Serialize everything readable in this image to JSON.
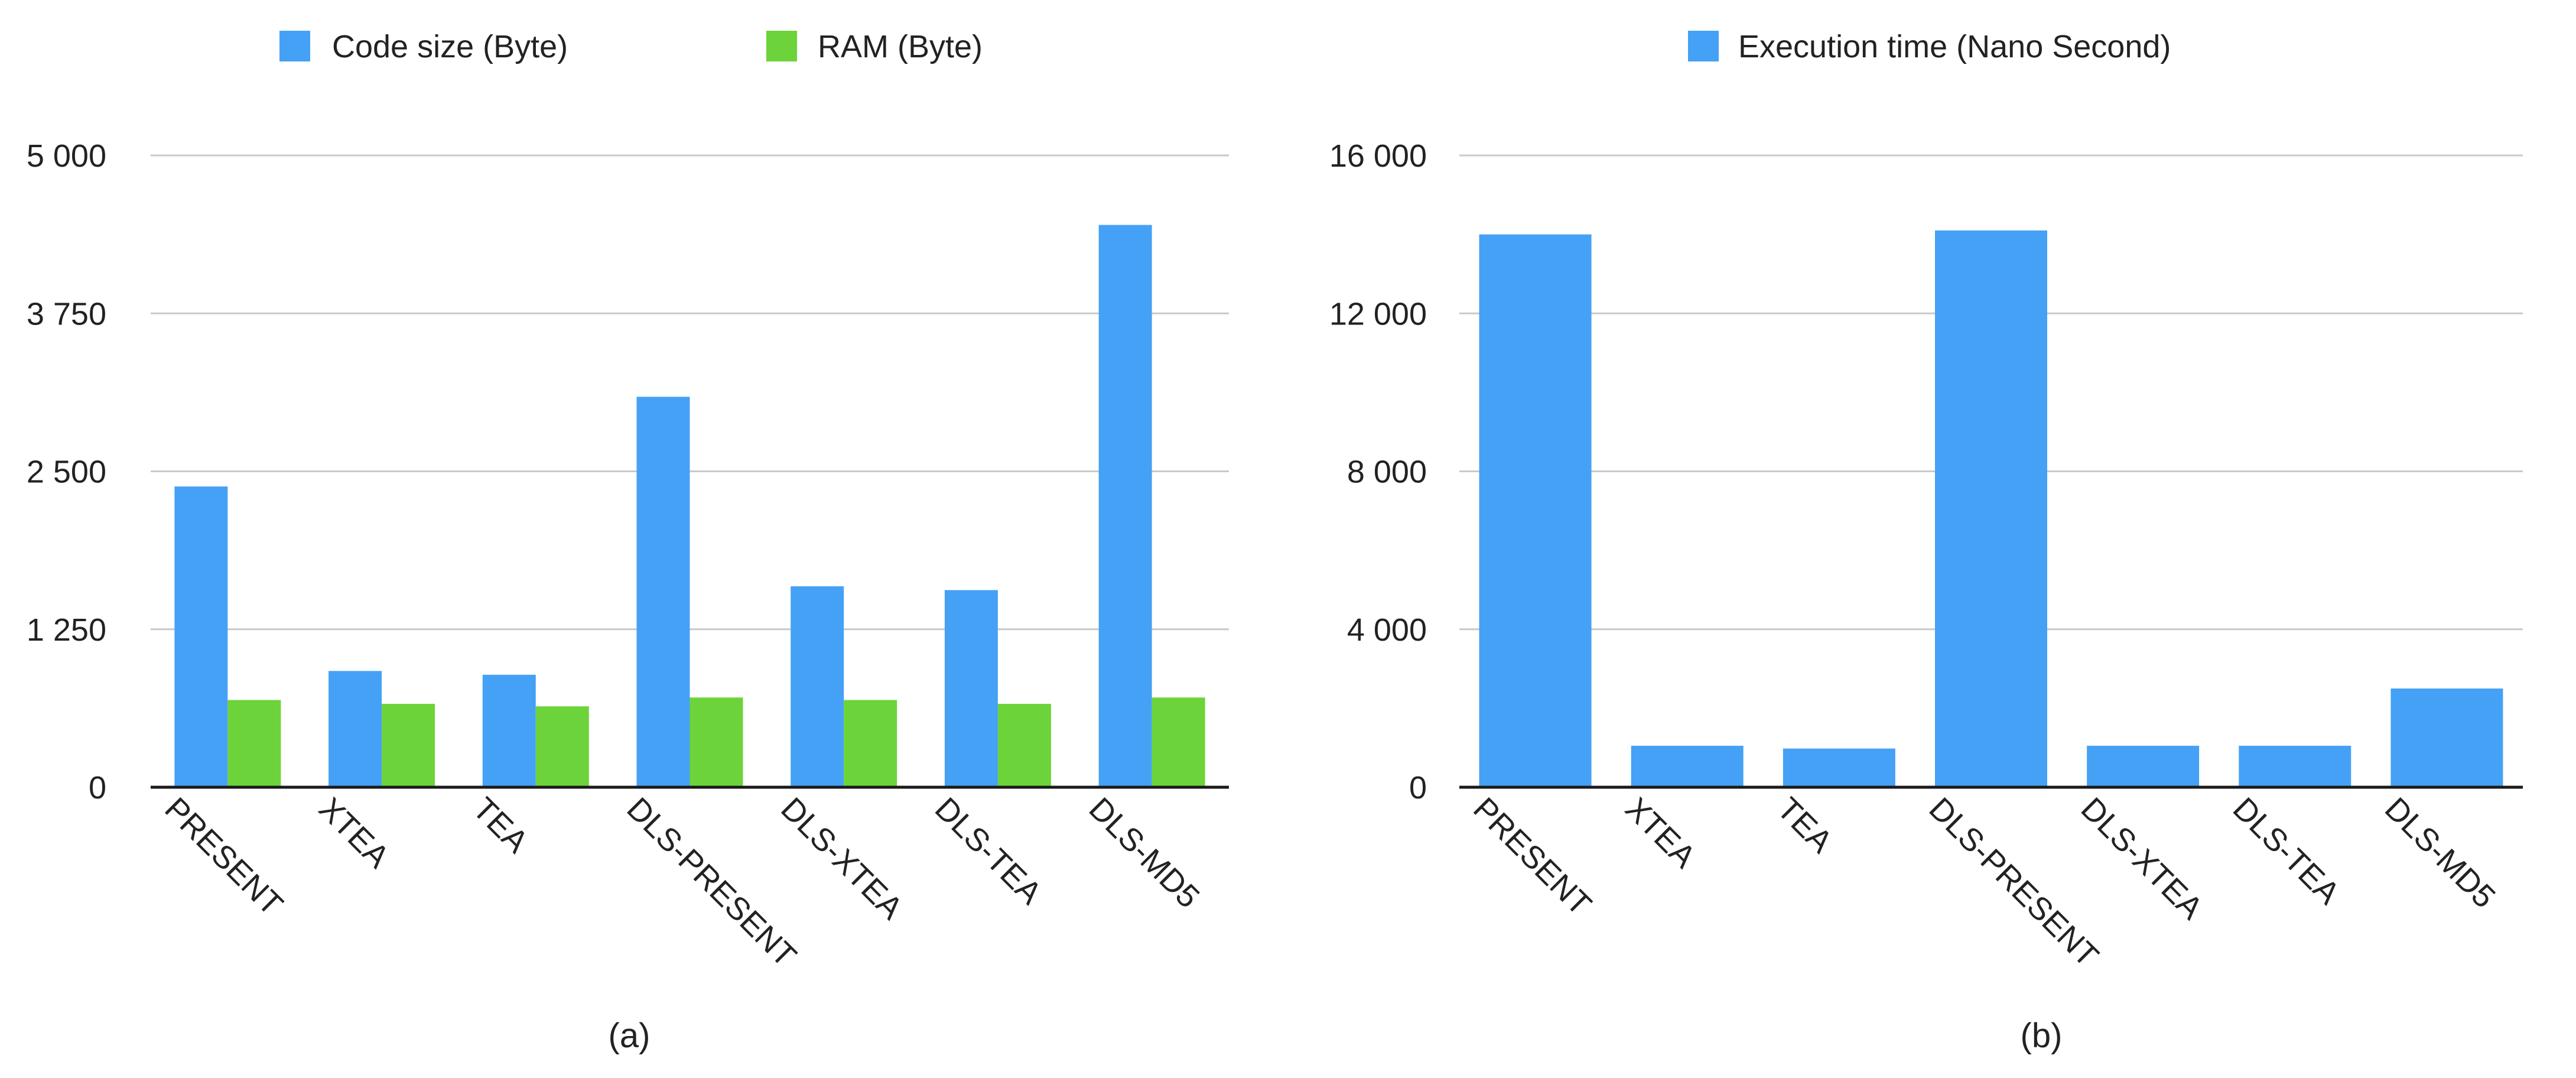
{
  "chart_data": [
    {
      "type": "bar",
      "caption": "(a)",
      "categories": [
        "PRESENT",
        "XTEA",
        "TEA",
        "DLS-PRESENT",
        "DLS-XTEA",
        "DLS-TEA",
        "DLS-MD5"
      ],
      "series": [
        {
          "name": "Code size (Byte)",
          "color": "#45a1f5",
          "values": [
            2380,
            920,
            890,
            3090,
            1590,
            1560,
            4450
          ]
        },
        {
          "name": "RAM (Byte)",
          "color": "#6cd43a",
          "values": [
            690,
            660,
            640,
            710,
            690,
            660,
            710
          ]
        }
      ],
      "yticks": [
        0,
        1250,
        2500,
        3750,
        5000
      ],
      "ytick_labels": [
        "0",
        "1 250",
        "2 500",
        "3 750",
        "5 000"
      ],
      "ylim": [
        0,
        5000
      ],
      "legend_position": "top"
    },
    {
      "type": "bar",
      "caption": "(b)",
      "categories": [
        "PRESENT",
        "XTEA",
        "TEA",
        "DLS-PRESENT",
        "DLS-XTEA",
        "DLS-TEA",
        "DLS-MD5"
      ],
      "series": [
        {
          "name": "Execution time (Nano Second)",
          "color": "#45a1f5",
          "values": [
            14000,
            1050,
            980,
            14100,
            1050,
            1050,
            2500
          ]
        }
      ],
      "yticks": [
        0,
        4000,
        8000,
        12000,
        16000
      ],
      "ytick_labels": [
        "0",
        "4 000",
        "8 000",
        "12 000",
        "16 000"
      ],
      "ylim": [
        0,
        16000
      ],
      "legend_position": "top"
    }
  ]
}
